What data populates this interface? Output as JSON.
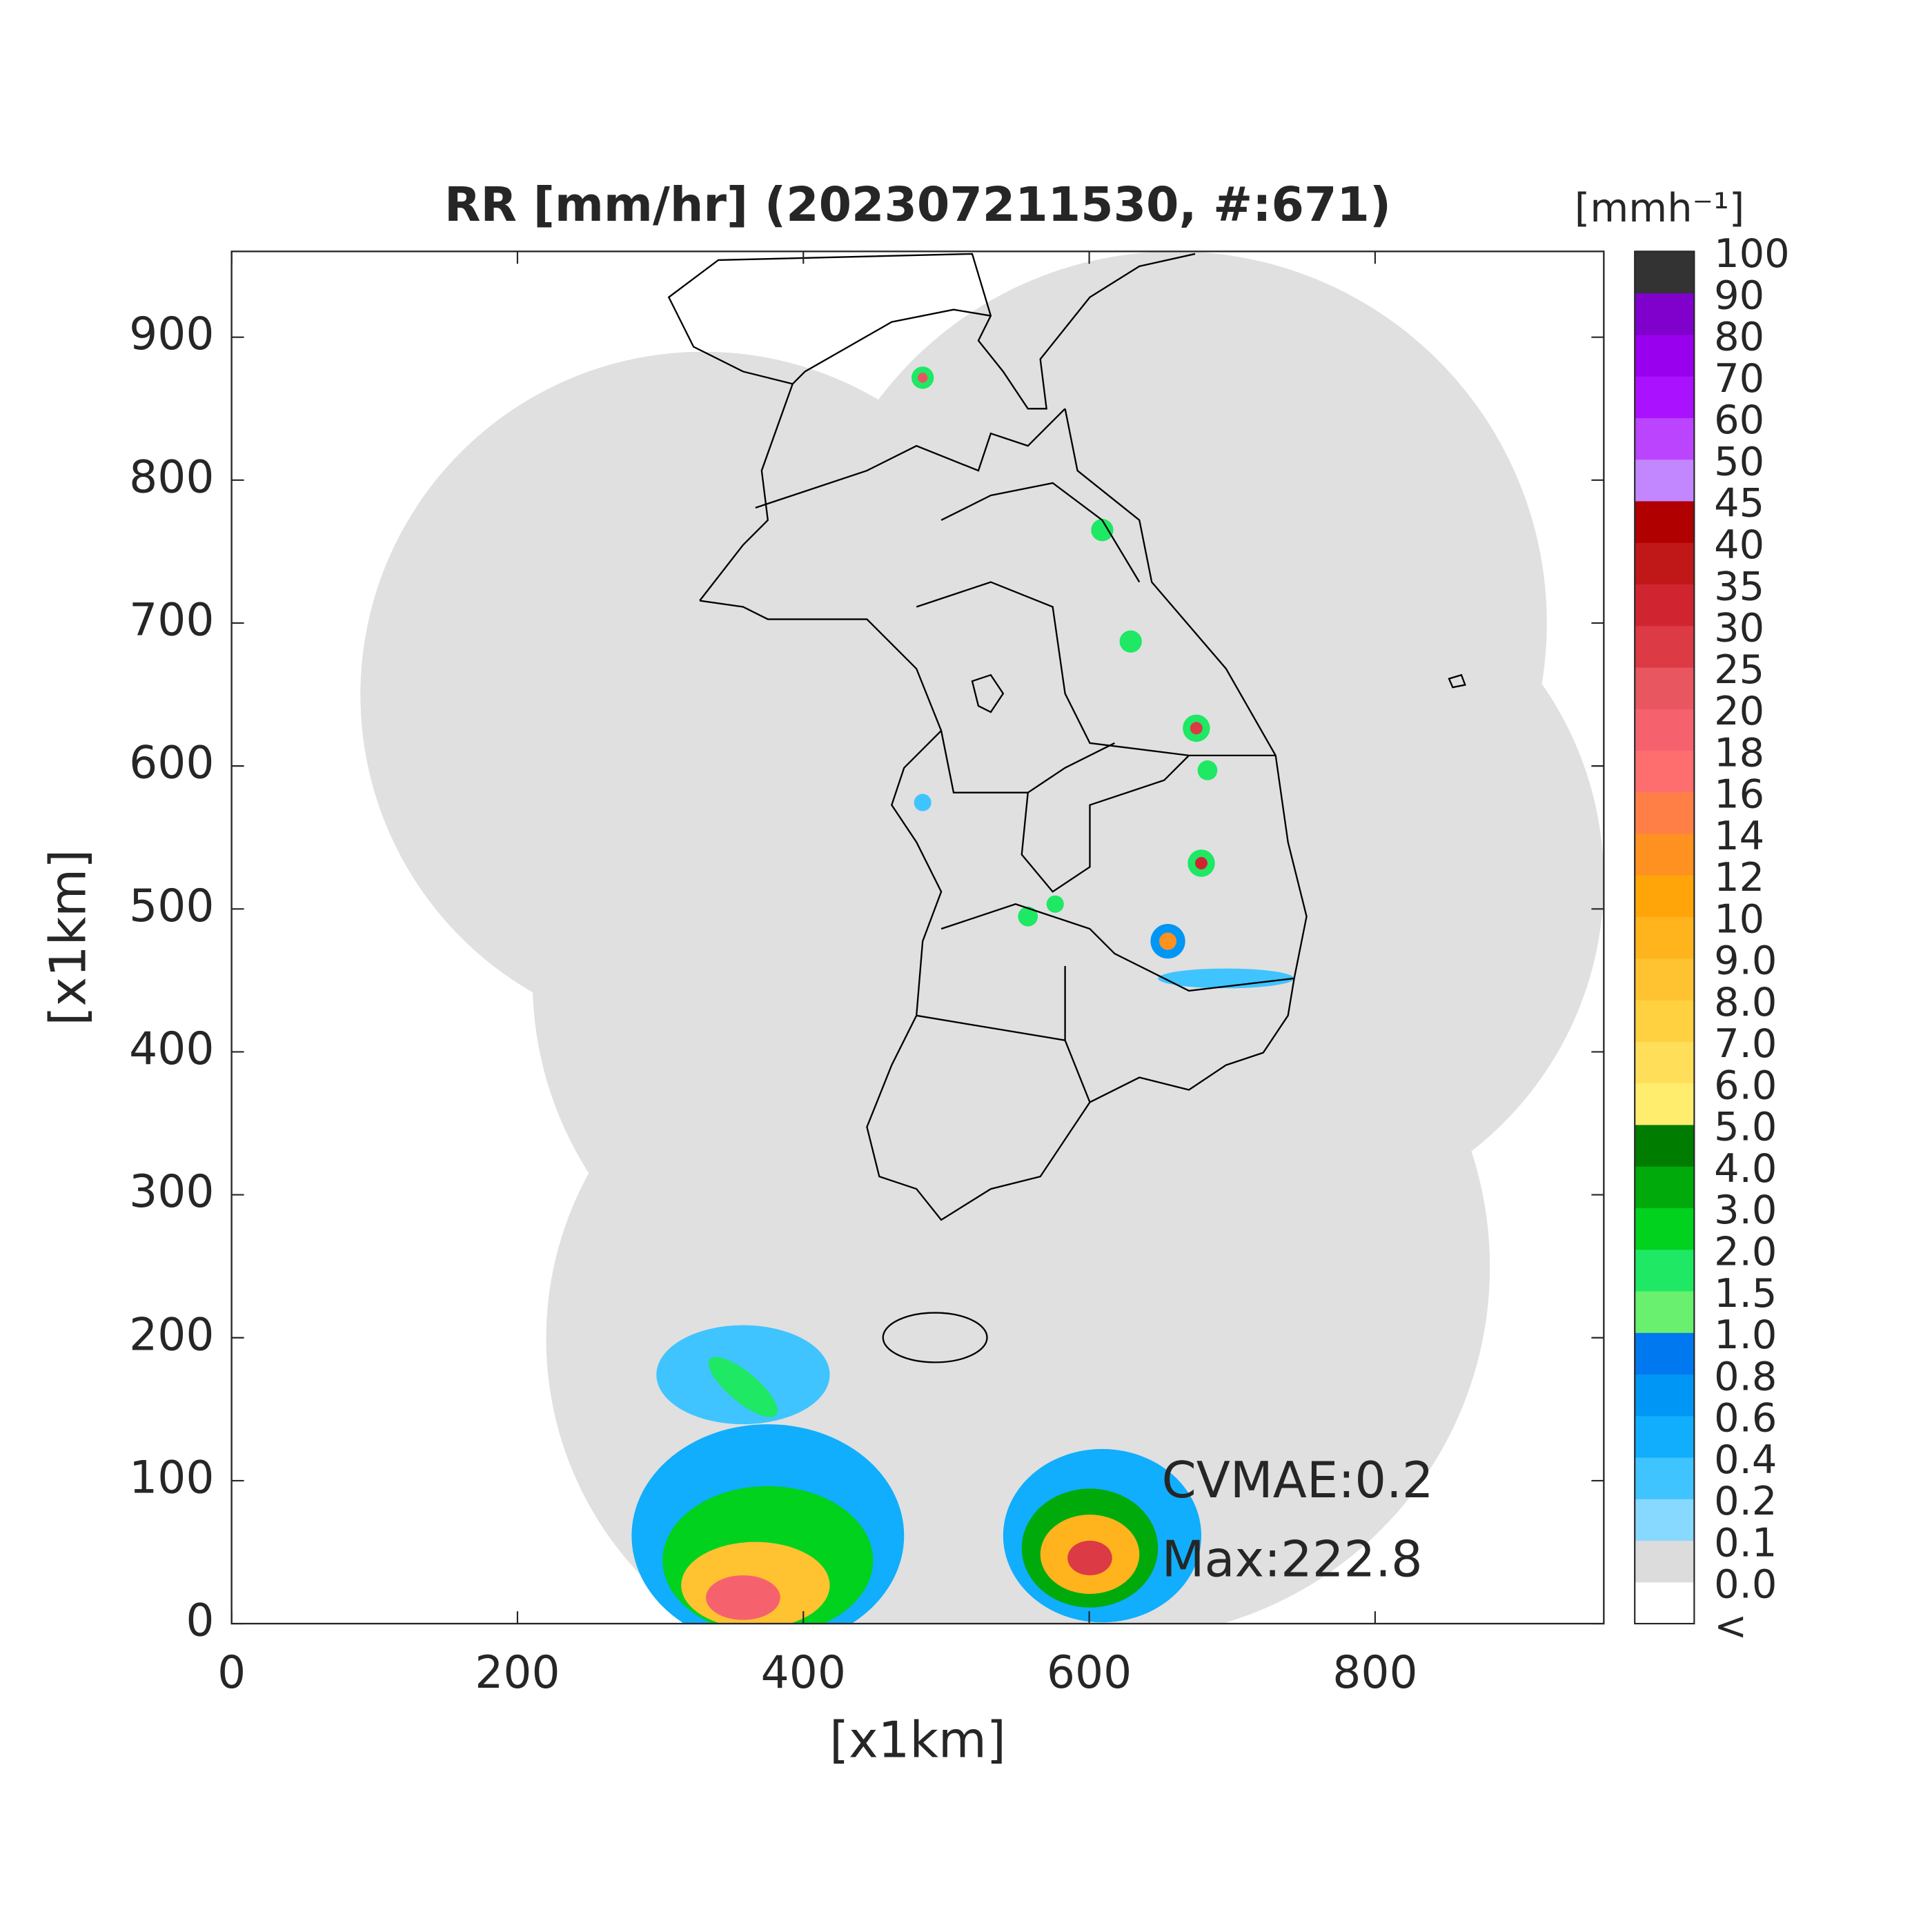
{
  "chart_data": {
    "type": "radar-map",
    "title": "RR [mm/hr] (202307211530, #:671)",
    "x_label": "[x1km]",
    "y_label": "[x1km]",
    "xlim": [
      0,
      960
    ],
    "ylim": [
      0,
      960
    ],
    "xticks": [
      0,
      200,
      400,
      600,
      800
    ],
    "yticks": [
      0,
      100,
      200,
      300,
      400,
      500,
      600,
      700,
      800,
      900
    ],
    "annotations": [
      "CVMAE:0.2",
      "Max:222.8"
    ],
    "colorbar": {
      "title": "[mmh⁻¹]",
      "labels": [
        "<",
        "0.0",
        "0.1",
        "0.2",
        "0.4",
        "0.6",
        "0.8",
        "1.0",
        "1.5",
        "2.0",
        "3.0",
        "4.0",
        "5.0",
        "6.0",
        "7.0",
        "8.0",
        "9.0",
        "10",
        "12",
        "14",
        "16",
        "18",
        "20",
        "25",
        "30",
        "35",
        "40",
        "45",
        "50",
        "60",
        "70",
        "80",
        "90",
        "100"
      ],
      "colors": [
        "#ffffff",
        "#dcdcdc",
        "#87d9ff",
        "#40c4ff",
        "#10aefc",
        "#0096f5",
        "#0078f0",
        "#69f06e",
        "#1ee864",
        "#00d21e",
        "#00aa0a",
        "#007d00",
        "#ffee6e",
        "#ffdf5a",
        "#ffd040",
        "#ffc231",
        "#ffb41e",
        "#ffa50a",
        "#ff9120",
        "#ff7f47",
        "#ff6e6e",
        "#f5626e",
        "#e85660",
        "#dc3a44",
        "#d02530",
        "#c01818",
        "#b00000",
        "#c286ff",
        "#bb44ff",
        "#aa11ff",
        "#9900ee",
        "#8000cc",
        "#333333"
      ]
    }
  }
}
